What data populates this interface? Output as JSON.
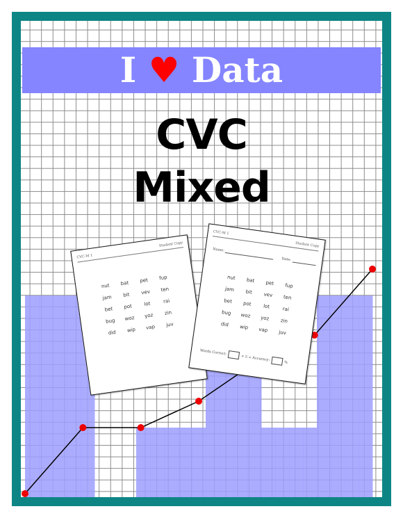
{
  "banner": {
    "prefix": "I",
    "heart_icon": "♥",
    "suffix": "Data"
  },
  "title": {
    "line1": "CVC",
    "line2": "Mixed"
  },
  "colors": {
    "frame": "#0e8585",
    "banner": "#8585ff",
    "bars": "#9e9eff",
    "heart": "#ff0000",
    "line_points": "#ee0000"
  },
  "decorative_chart": {
    "bar_heights": [
      15,
      15,
      15,
      15,
      15,
      0,
      0,
      0,
      5,
      5,
      5,
      5,
      5,
      10,
      10,
      10,
      10,
      5,
      5,
      5,
      5,
      15,
      15,
      15,
      15
    ],
    "line_points": [
      [
        0,
        0
      ],
      [
        5,
        5
      ],
      [
        10,
        5
      ],
      [
        15,
        7
      ],
      [
        20,
        10
      ],
      [
        25,
        12
      ],
      [
        30,
        17
      ]
    ],
    "x_range": [
      0,
      30
    ],
    "y_range": [
      0,
      36
    ]
  },
  "teacher_sheet": {
    "header_left": "CVC-M 1",
    "header_right": "Student Copy",
    "words": [
      "nut",
      "bat",
      "pet",
      "fup",
      "jam",
      "bit",
      "vev",
      "ten",
      "bet",
      "pot",
      "lot",
      "rai",
      "bug",
      "woz",
      "yoz",
      "zin",
      "did",
      "wip",
      "vap",
      "juv"
    ]
  },
  "student_sheet": {
    "header_left": "CVC-M 1",
    "header_right": "Student Copy",
    "name_label": "Name:",
    "date_label": "Date:",
    "words": [
      "nut",
      "bat",
      "pet",
      "fup",
      "jam",
      "bit",
      "vev",
      "ten",
      "bet",
      "pot",
      "lot",
      "rai",
      "bug",
      "woz",
      "yoz",
      "zin",
      "did",
      "wip",
      "vap",
      "juv"
    ],
    "footer_prefix": "Words Correct:",
    "footer_mid": "× 5 = Accuracy:",
    "footer_suffix": "%"
  }
}
